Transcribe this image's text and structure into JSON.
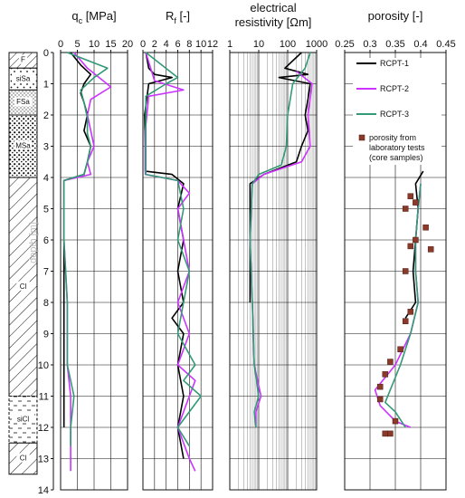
{
  "chart_data": {
    "type": "line",
    "depth_axis": {
      "label": "depth [m]",
      "range": [
        0,
        14
      ],
      "ticks": [
        "0",
        "1",
        "2",
        "3",
        "4",
        "5",
        "6",
        "7",
        "8",
        "9",
        "10",
        "11",
        "12",
        "13",
        "14"
      ]
    },
    "soil_column": [
      {
        "label": "F",
        "top": 0.0,
        "bottom": 0.5,
        "pattern": "hatch"
      },
      {
        "label": "siSa",
        "top": 0.5,
        "bottom": 1.2,
        "pattern": "dots"
      },
      {
        "label": "FSa",
        "top": 1.2,
        "bottom": 2.0,
        "pattern": "fine-dots"
      },
      {
        "label": "MSa",
        "top": 2.0,
        "bottom": 4.0,
        "pattern": "dense-dots"
      },
      {
        "label": "Cl",
        "top": 4.0,
        "bottom": 11.0,
        "pattern": "diagonal"
      },
      {
        "label": "siCl",
        "top": 11.0,
        "bottom": 12.5,
        "pattern": "dashed"
      },
      {
        "label": "Cl",
        "top": 12.5,
        "bottom": 13.5,
        "pattern": "diagonal"
      }
    ],
    "panels": [
      {
        "title": "qⱼ [MPa]",
        "title_main": "q",
        "title_sub": "c",
        "title_rest": " [MPa]",
        "xlim": [
          0,
          20
        ],
        "ticks": [
          "0",
          "5",
          "10",
          "15",
          "20"
        ],
        "scale": "linear",
        "series": [
          {
            "name": "RCPT-1",
            "color": "#000000",
            "points": [
              [
                3,
                0
              ],
              [
                6,
                0.4
              ],
              [
                9,
                0.7
              ],
              [
                7,
                1.0
              ],
              [
                6,
                1.3
              ],
              [
                7,
                1.6
              ],
              [
                8,
                2.0
              ],
              [
                7,
                2.5
              ],
              [
                9,
                3.0
              ],
              [
                8,
                3.5
              ],
              [
                7,
                3.9
              ],
              [
                1,
                4.1
              ],
              [
                1,
                6
              ],
              [
                1,
                8
              ],
              [
                1,
                10
              ],
              [
                1,
                12
              ]
            ]
          },
          {
            "name": "RCPT-2",
            "color": "#cc33ff",
            "points": [
              [
                4,
                0
              ],
              [
                8,
                0.5
              ],
              [
                15,
                1.1
              ],
              [
                9,
                1.5
              ],
              [
                8,
                2.0
              ],
              [
                9,
                2.5
              ],
              [
                10,
                3.0
              ],
              [
                8,
                3.5
              ],
              [
                9,
                3.9
              ],
              [
                1,
                4.1
              ],
              [
                1,
                6
              ],
              [
                2,
                8
              ],
              [
                2,
                10
              ],
              [
                3,
                11
              ],
              [
                3,
                12
              ],
              [
                3,
                13.4
              ]
            ]
          },
          {
            "name": "RCPT-3",
            "color": "#339977",
            "points": [
              [
                2,
                0
              ],
              [
                14,
                0.5
              ],
              [
                10,
                0.8
              ],
              [
                6,
                1.2
              ],
              [
                7,
                1.6
              ],
              [
                8,
                2.1
              ],
              [
                8,
                2.6
              ],
              [
                9,
                3.0
              ],
              [
                8,
                3.5
              ],
              [
                7,
                3.9
              ],
              [
                1,
                4.1
              ],
              [
                1,
                6
              ],
              [
                2,
                8
              ],
              [
                2,
                10
              ],
              [
                4,
                11
              ],
              [
                3,
                12
              ],
              [
                3,
                12.6
              ]
            ]
          }
        ]
      },
      {
        "title": "Rⱼ [-]",
        "title_main": "R",
        "title_sub": "f",
        "title_rest": " [-]",
        "xlim": [
          0,
          12
        ],
        "ticks": [
          "0",
          "2",
          "4",
          "6",
          "8",
          "10",
          "12"
        ],
        "scale": "linear",
        "series": [
          {
            "name": "RCPT-1",
            "color": "#000000",
            "points": [
              [
                0.5,
                0
              ],
              [
                1,
                0.5
              ],
              [
                2,
                0.7
              ],
              [
                5,
                0.8
              ],
              [
                1,
                1.0
              ],
              [
                0.3,
                2.0
              ],
              [
                0.4,
                3.0
              ],
              [
                0.4,
                3.8
              ],
              [
                5,
                3.9
              ],
              [
                7,
                4.2
              ],
              [
                6,
                5
              ],
              [
                7,
                6
              ],
              [
                6,
                7
              ],
              [
                7,
                8
              ],
              [
                5,
                8.5
              ],
              [
                7,
                9
              ],
              [
                6,
                10
              ],
              [
                7,
                11
              ],
              [
                6,
                12
              ],
              [
                7,
                13
              ]
            ]
          },
          {
            "name": "RCPT-2",
            "color": "#cc33ff",
            "points": [
              [
                0.5,
                0
              ],
              [
                2,
                0.9
              ],
              [
                7,
                1.2
              ],
              [
                1,
                1.4
              ],
              [
                0.4,
                2.5
              ],
              [
                0.4,
                3.9
              ],
              [
                6,
                4.1
              ],
              [
                8,
                4.5
              ],
              [
                6,
                5
              ],
              [
                7,
                6
              ],
              [
                8,
                7
              ],
              [
                6,
                8
              ],
              [
                8,
                9
              ],
              [
                6,
                10
              ],
              [
                9,
                10.5
              ],
              [
                8,
                11
              ],
              [
                6,
                12
              ],
              [
                8,
                13
              ],
              [
                9,
                13.4
              ]
            ]
          },
          {
            "name": "RCPT-3",
            "color": "#339977",
            "points": [
              [
                0.5,
                0
              ],
              [
                6,
                0.8
              ],
              [
                4,
                1.0
              ],
              [
                0.5,
                1.4
              ],
              [
                0.5,
                3.9
              ],
              [
                6,
                4.1
              ],
              [
                7,
                5
              ],
              [
                6,
                6
              ],
              [
                8,
                7
              ],
              [
                7,
                8
              ],
              [
                6,
                9
              ],
              [
                9,
                10
              ],
              [
                7,
                10.5
              ],
              [
                10,
                11
              ],
              [
                6,
                12
              ],
              [
                8,
                12.6
              ]
            ]
          }
        ]
      },
      {
        "title": "electrical resistivity [Ωm]",
        "title_line1": "electrical",
        "title_line2": "resistivity [Ωm]",
        "xlim": [
          1,
          1000
        ],
        "ticks": [
          "1",
          "10",
          "100",
          "1000"
        ],
        "scale": "log",
        "series": [
          {
            "name": "RCPT-1",
            "color": "#000000",
            "points": [
              [
                300,
                0
              ],
              [
                80,
                0.5
              ],
              [
                500,
                0.7
              ],
              [
                50,
                0.8
              ],
              [
                600,
                1.0
              ],
              [
                500,
                1.5
              ],
              [
                400,
                2.0
              ],
              [
                500,
                2.5
              ],
              [
                300,
                3.0
              ],
              [
                200,
                3.5
              ],
              [
                15,
                3.9
              ],
              [
                5,
                4.2
              ],
              [
                5,
                6
              ],
              [
                5,
                8
              ]
            ]
          },
          {
            "name": "RCPT-2",
            "color": "#cc33ff",
            "points": [
              [
                200,
                0.6
              ],
              [
                700,
                1.0
              ],
              [
                500,
                2.0
              ],
              [
                600,
                3.0
              ],
              [
                300,
                3.5
              ],
              [
                15,
                3.9
              ],
              [
                6,
                4.2
              ],
              [
                5,
                6
              ],
              [
                6,
                8
              ],
              [
                7,
                10
              ],
              [
                12,
                11
              ],
              [
                8,
                11.5
              ],
              [
                8,
                12
              ]
            ]
          },
          {
            "name": "RCPT-3",
            "color": "#339977",
            "points": [
              [
                600,
                0
              ],
              [
                400,
                0.5
              ],
              [
                150,
                1.0
              ],
              [
                100,
                2.0
              ],
              [
                90,
                3.0
              ],
              [
                60,
                3.6
              ],
              [
                10,
                3.9
              ],
              [
                6,
                4.2
              ],
              [
                5,
                6
              ],
              [
                6,
                8
              ],
              [
                7,
                10
              ],
              [
                10,
                11
              ],
              [
                7,
                11.5
              ],
              [
                8,
                12
              ]
            ]
          }
        ]
      },
      {
        "title": "porosity [-]",
        "xlim": [
          0.25,
          0.45
        ],
        "ticks": [
          "0.25",
          "0.3",
          "0.35",
          "0.4",
          "0.45"
        ],
        "scale": "linear",
        "series": [
          {
            "name": "RCPT-1",
            "color": "#000000",
            "points": [
              [
                0.405,
                3.8
              ],
              [
                0.39,
                4.2
              ],
              [
                0.395,
                5
              ],
              [
                0.39,
                6
              ],
              [
                0.385,
                7
              ],
              [
                0.39,
                8
              ],
              [
                0.37,
                8.5
              ]
            ]
          },
          {
            "name": "RCPT-2",
            "color": "#cc33ff",
            "points": [
              [
                0.4,
                4.2
              ],
              [
                0.395,
                5
              ],
              [
                0.39,
                6
              ],
              [
                0.39,
                7
              ],
              [
                0.395,
                8
              ],
              [
                0.38,
                9
              ],
              [
                0.35,
                10
              ],
              [
                0.31,
                10.8
              ],
              [
                0.32,
                11.3
              ],
              [
                0.35,
                11.8
              ],
              [
                0.38,
                12
              ]
            ]
          },
          {
            "name": "RCPT-3",
            "color": "#339977",
            "points": [
              [
                0.4,
                4.2
              ],
              [
                0.395,
                5
              ],
              [
                0.39,
                6
              ],
              [
                0.39,
                7
              ],
              [
                0.395,
                8
              ],
              [
                0.38,
                9
              ],
              [
                0.36,
                10
              ],
              [
                0.34,
                10.8
              ],
              [
                0.33,
                11.2
              ],
              [
                0.35,
                11.5
              ],
              [
                0.37,
                12
              ]
            ]
          }
        ],
        "lab_points_name": "porosity from laboratory tests (core samples)",
        "lab_points_color": "#8b3a2a",
        "lab_points": [
          [
            0.38,
            4.6
          ],
          [
            0.39,
            4.8
          ],
          [
            0.37,
            5.0
          ],
          [
            0.41,
            5.6
          ],
          [
            0.39,
            6.0
          ],
          [
            0.38,
            6.2
          ],
          [
            0.42,
            6.3
          ],
          [
            0.37,
            7.0
          ],
          [
            0.38,
            8.3
          ],
          [
            0.37,
            8.6
          ],
          [
            0.36,
            9.5
          ],
          [
            0.34,
            9.9
          ],
          [
            0.33,
            10.3
          ],
          [
            0.32,
            10.7
          ],
          [
            0.32,
            11.1
          ],
          [
            0.35,
            11.8
          ],
          [
            0.33,
            12.2
          ],
          [
            0.34,
            12.2
          ]
        ]
      }
    ],
    "legend": {
      "placement": "top-right",
      "entries": [
        "RCPT-1",
        "RCPT-2",
        "RCPT-3",
        "porosity from laboratory tests (core samples)"
      ],
      "lab_label_lines": [
        "porosity from",
        "laboratory tests",
        "(core samples)"
      ]
    }
  }
}
